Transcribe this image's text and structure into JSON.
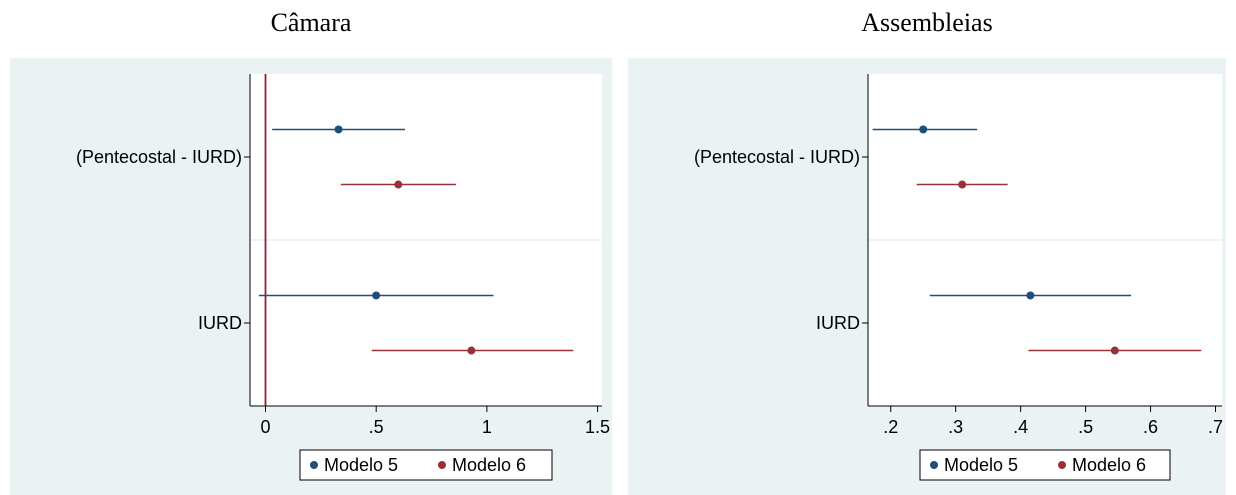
{
  "chart_data": [
    {
      "type": "scatter",
      "title": "Câmara",
      "categories": [
        "(Pentecostal - IURD)",
        "IURD"
      ],
      "xlim": [
        -0.07,
        1.52
      ],
      "xticks": [
        0,
        0.5,
        1,
        1.5
      ],
      "xtick_labels": [
        "0",
        ".5",
        "1",
        "1.5"
      ],
      "reference_line": 0,
      "legend_position": "bottom",
      "series": [
        {
          "name": "Modelo 5",
          "color": "#1f4e79",
          "points": [
            {
              "category": "(Pentecostal - IURD)",
              "estimate": 0.33,
              "ci": [
                0.03,
                0.63
              ]
            },
            {
              "category": "IURD",
              "estimate": 0.5,
              "ci": [
                -0.03,
                1.03
              ]
            }
          ]
        },
        {
          "name": "Modelo 6",
          "color": "#9b3138",
          "points": [
            {
              "category": "(Pentecostal - IURD)",
              "estimate": 0.6,
              "ci": [
                0.34,
                0.86
              ]
            },
            {
              "category": "IURD",
              "estimate": 0.93,
              "ci": [
                0.48,
                1.39
              ]
            }
          ]
        }
      ]
    },
    {
      "type": "scatter",
      "title": "Assembleias",
      "categories": [
        "(Pentecostal - IURD)",
        "IURD"
      ],
      "xlim": [
        0.165,
        0.71
      ],
      "xticks": [
        0.2,
        0.3,
        0.4,
        0.5,
        0.6,
        0.7
      ],
      "xtick_labels": [
        ".2",
        ".3",
        ".4",
        ".5",
        ".6",
        ".7"
      ],
      "legend_position": "bottom",
      "series": [
        {
          "name": "Modelo 5",
          "color": "#1f4e79",
          "points": [
            {
              "category": "(Pentecostal - IURD)",
              "estimate": 0.25,
              "ci": [
                0.172,
                0.333
              ]
            },
            {
              "category": "IURD",
              "estimate": 0.415,
              "ci": [
                0.26,
                0.57
              ]
            }
          ]
        },
        {
          "name": "Modelo 6",
          "color": "#9b3138",
          "points": [
            {
              "category": "(Pentecostal - IURD)",
              "estimate": 0.31,
              "ci": [
                0.24,
                0.38
              ]
            },
            {
              "category": "IURD",
              "estimate": 0.545,
              "ci": [
                0.412,
                0.678
              ]
            }
          ]
        }
      ]
    }
  ]
}
